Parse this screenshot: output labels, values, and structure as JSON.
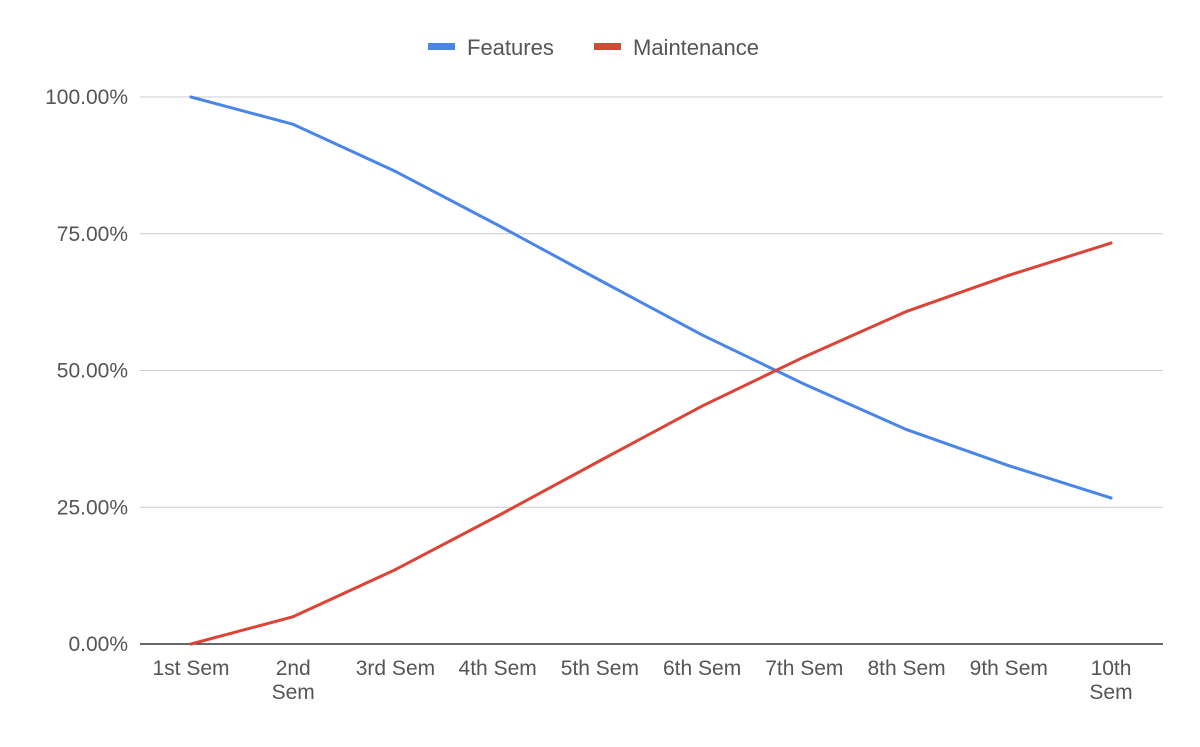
{
  "chart_data": {
    "type": "line",
    "title": "",
    "xlabel": "",
    "ylabel": "",
    "categories": [
      [
        "1st Sem"
      ],
      [
        "2nd",
        "Sem"
      ],
      [
        "3rd Sem"
      ],
      [
        "4th Sem"
      ],
      [
        "5th Sem"
      ],
      [
        "6th Sem"
      ],
      [
        "7th Sem"
      ],
      [
        "8th Sem"
      ],
      [
        "9th Sem"
      ],
      [
        "10th",
        "Sem"
      ]
    ],
    "series": [
      {
        "name": "Features",
        "color": "#4a86e8",
        "values": [
          100.0,
          95.0,
          86.4,
          76.6,
          66.5,
          56.5,
          47.5,
          39.2,
          32.6,
          26.7
        ]
      },
      {
        "name": "Maintenance",
        "color": "#db4437",
        "values": [
          0.0,
          5.0,
          13.6,
          23.4,
          33.5,
          43.5,
          52.5,
          60.8,
          67.4,
          73.3
        ]
      }
    ],
    "ylim": [
      0,
      100
    ],
    "yticks": [
      0,
      25,
      50,
      75,
      100
    ],
    "ytick_labels": [
      "0.00%",
      "25.00%",
      "50.00%",
      "75.00%",
      "100.00%"
    ],
    "grid": true,
    "legend_position": "top-center"
  }
}
